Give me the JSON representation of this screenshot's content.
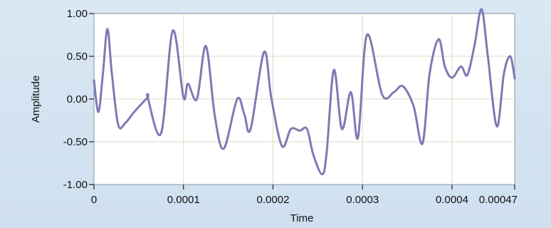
{
  "graph": {
    "plot_background": "#ffffff",
    "grid_color": "#cfe3c4",
    "line_color": "#8079b4",
    "panel_color": "#d7e6f3"
  },
  "chart_data": {
    "type": "line",
    "title": "",
    "xlabel": "Time",
    "ylabel": "Amplitude",
    "xlim": [
      0,
      0.00047
    ],
    "ylim": [
      -1.0,
      1.0
    ],
    "grid": true,
    "x_ticks": [
      0,
      0.0001,
      0.0002,
      0.0003,
      0.0004,
      0.00047
    ],
    "x_tick_labels": [
      "0",
      "0.0001",
      "0.0002",
      "0.0003",
      "0.0004",
      "0.00047"
    ],
    "y_ticks": [
      1.0,
      0.5,
      0.0,
      -0.5,
      -1.0
    ],
    "y_tick_labels": [
      "1.00",
      "0.50",
      "0.00",
      "-0.50",
      "-1.00"
    ],
    "series": [
      {
        "x": [
          0,
          5e-06,
          1e-05,
          1.5e-05,
          2e-05,
          2.7e-05,
          3.5e-05,
          4.5e-05,
          6e-05,
          6e-05,
          7.5e-05,
          8.8e-05,
          0.0001,
          0.000105,
          0.000115,
          0.000125,
          0.000135,
          0.000145,
          0.00016,
          0.000168,
          0.000175,
          0.00019,
          0.000198,
          0.00021,
          0.00022,
          0.00023,
          0.000238,
          0.000245,
          0.000255,
          0.00026,
          0.000268,
          0.000277,
          0.000287,
          0.000295,
          0.000305,
          0.000322,
          0.000335,
          0.000345,
          0.000357,
          0.000367,
          0.000375,
          0.000385,
          0.000392,
          0.0004,
          0.00041,
          0.000417,
          0.000425,
          0.000433,
          0.00044,
          0.00045,
          0.000458,
          0.000465,
          0.00047
        ],
        "values": [
          0.22,
          -0.15,
          0.3,
          0.82,
          0.3,
          -0.3,
          -0.28,
          -0.15,
          0.02,
          0.02,
          -0.4,
          0.8,
          0.02,
          0.18,
          0.0,
          0.62,
          -0.2,
          -0.58,
          0.0,
          -0.18,
          -0.35,
          0.55,
          0.02,
          -0.55,
          -0.35,
          -0.37,
          -0.35,
          -0.65,
          -0.88,
          -0.62,
          0.34,
          -0.35,
          0.08,
          -0.45,
          0.75,
          0.05,
          0.08,
          0.15,
          -0.08,
          -0.52,
          0.3,
          0.7,
          0.38,
          0.25,
          0.38,
          0.28,
          0.62,
          1.05,
          0.5,
          -0.32,
          0.3,
          0.5,
          0.24
        ]
      }
    ]
  }
}
